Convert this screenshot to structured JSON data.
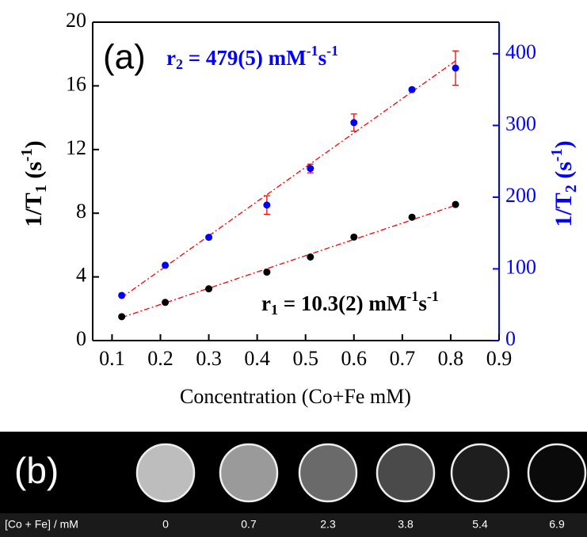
{
  "chart_data": {
    "type": "scatter",
    "panel_label": "(a)",
    "x_label": "Concentration (Co+Fe mM)",
    "y_label": [
      "1/T",
      "1",
      " (s",
      "-1",
      ")"
    ],
    "y2_label": [
      "1/T",
      "2",
      " (s",
      "-1",
      ")"
    ],
    "annotations": [
      [
        "r",
        "2",
        " = 479(5) mM",
        "-1",
        "s",
        "-1"
      ],
      [
        "r",
        "1",
        " = 10.3(2) mM",
        "-1",
        "s",
        "-1"
      ]
    ],
    "xlim": [
      0.06,
      0.9
    ],
    "xticks": [
      0.1,
      0.2,
      0.3,
      0.4,
      0.5,
      0.6,
      0.7,
      0.8,
      0.9
    ],
    "ylim": [
      0,
      20
    ],
    "yticks": [
      0,
      4,
      8,
      12,
      16,
      20
    ],
    "y2lim": [
      0,
      444
    ],
    "y2ticks": [
      0,
      100,
      200,
      300,
      400
    ],
    "y2_color": "#0000ff",
    "series": [
      {
        "axis": "y",
        "color": "#000000",
        "x": [
          0.12,
          0.21,
          0.3,
          0.42,
          0.51,
          0.6,
          0.72,
          0.81
        ],
        "values": [
          1.5,
          2.4,
          3.25,
          4.3,
          5.25,
          6.5,
          7.75,
          8.55
        ]
      },
      {
        "axis": "y2",
        "color": "#0000ff",
        "error_color": "#ff0000",
        "x": [
          0.12,
          0.21,
          0.3,
          0.42,
          0.51,
          0.6,
          0.72,
          0.81
        ],
        "values": [
          63,
          105,
          144,
          189,
          240,
          304,
          350,
          380
        ],
        "errors": [
          2,
          2,
          2,
          13,
          6,
          12,
          2,
          24
        ]
      }
    ],
    "fits": [
      {
        "axis": "y",
        "color": "#ff0000",
        "x": [
          0.12,
          0.81
        ],
        "values": [
          1.45,
          8.5
        ]
      },
      {
        "axis": "y2",
        "color": "#ff0000",
        "x": [
          0.12,
          0.81
        ],
        "values": [
          60,
          390
        ]
      }
    ]
  },
  "panel_b": {
    "label": "(b)",
    "row_label": "[Co + Fe] / mM",
    "concentrations": [
      "0",
      "0.7",
      "2.3",
      "3.8",
      "5.4",
      "6.9"
    ]
  }
}
